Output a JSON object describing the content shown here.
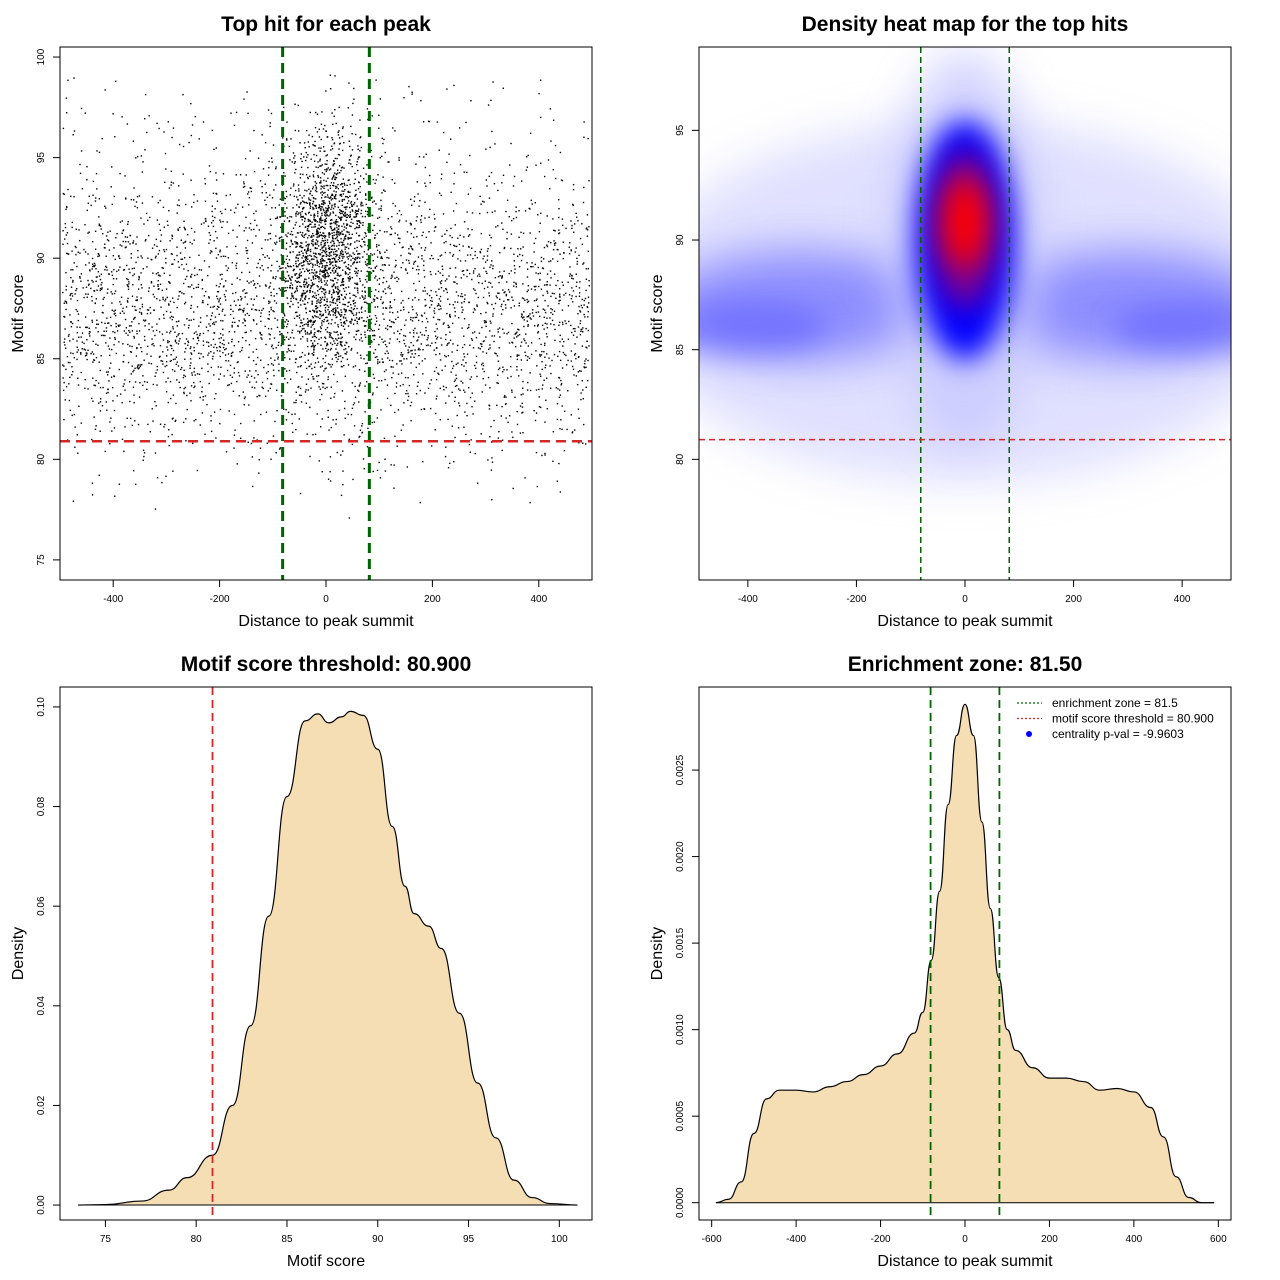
{
  "chart_data": [
    {
      "id": "scatter",
      "type": "scatter",
      "title": "Top hit for each peak",
      "xlabel": "Distance to peak summit",
      "ylabel": "Motif score",
      "xlim": [
        -500,
        500
      ],
      "ylim": [
        74,
        100.5
      ],
      "xticks": [
        "-400",
        "-200",
        "0",
        "200",
        "400"
      ],
      "xtick_values": [
        -400,
        -200,
        0,
        200,
        400
      ],
      "yticks": [
        "75",
        "80",
        "85",
        "90",
        "95",
        "100"
      ],
      "ytick_values": [
        75,
        80,
        85,
        90,
        95,
        100
      ],
      "vlines": [
        -81.5,
        81.5
      ],
      "hline": 80.9,
      "point_density": {
        "x_range": [
          -495,
          495
        ],
        "y_range": [
          77,
          99.2
        ],
        "background_center": 87.3,
        "central_peak_x": 0,
        "central_peak_y": 90.5
      },
      "colors": {
        "points": "#000000",
        "vlines": "#006400",
        "hline": "#d62728"
      },
      "grid": false
    },
    {
      "id": "heatmap",
      "type": "heatmap",
      "title": "Density heat map for the top hits",
      "xlabel": "Distance to peak summit",
      "ylabel": "Motif score",
      "xlim": [
        -490,
        490
      ],
      "ylim": [
        74.5,
        98.8
      ],
      "xticks": [
        "-400",
        "-200",
        "0",
        "200",
        "400"
      ],
      "xtick_values": [
        -400,
        -200,
        0,
        200,
        400
      ],
      "yticks": [
        "80",
        "85",
        "90",
        "95"
      ],
      "ytick_values": [
        80,
        85,
        90,
        95
      ],
      "vlines": [
        -81.5,
        81.5
      ],
      "hline": 80.9,
      "density_peak": {
        "x": 0,
        "y": 90.8
      },
      "colors": {
        "low": "#ffffff",
        "mid": "#0000ff",
        "high": "#ff0000",
        "vlines": "#006400",
        "hline": "#d62728"
      },
      "grid": false
    },
    {
      "id": "score-density",
      "type": "area",
      "title": "Motif score threshold: 80.900",
      "xlabel": "Motif score",
      "ylabel": "Density",
      "xlim": [
        72.5,
        101.8
      ],
      "ylim": [
        -0.003,
        0.104
      ],
      "xticks": [
        "75",
        "80",
        "85",
        "90",
        "95",
        "100"
      ],
      "xtick_values": [
        75,
        80,
        85,
        90,
        95,
        100
      ],
      "yticks": [
        "0.00",
        "0.02",
        "0.04",
        "0.06",
        "0.08",
        "0.10"
      ],
      "ytick_values": [
        0,
        0.02,
        0.04,
        0.06,
        0.08,
        0.1
      ],
      "x": [
        73.5,
        75,
        77,
        78.5,
        79.5,
        80.9,
        82,
        83,
        84,
        85,
        86,
        86.7,
        87.3,
        88,
        88.5,
        89.2,
        90,
        90.8,
        91.5,
        92,
        92.8,
        93.5,
        94.5,
        95.5,
        96.5,
        97.5,
        98.5,
        99.5,
        101
      ],
      "values": [
        0.0,
        0.0001,
        0.0008,
        0.003,
        0.0055,
        0.01,
        0.02,
        0.036,
        0.058,
        0.082,
        0.0972,
        0.0986,
        0.0968,
        0.098,
        0.0991,
        0.0983,
        0.0915,
        0.076,
        0.064,
        0.0585,
        0.056,
        0.0515,
        0.0385,
        0.0245,
        0.0135,
        0.005,
        0.0015,
        0.0003,
        0.0
      ],
      "vline": 80.9,
      "colors": {
        "fill": "#f5deb3",
        "line": "#000000",
        "vline": "#d62728"
      },
      "grid": false
    },
    {
      "id": "distance-density",
      "type": "area",
      "title": "Enrichment zone: 81.50",
      "xlabel": "Distance to peak summit",
      "ylabel": "Density",
      "xlim": [
        -630,
        630
      ],
      "ylim": [
        -0.0001,
        0.00298
      ],
      "xticks": [
        "-600",
        "-400",
        "-200",
        "0",
        "200",
        "400",
        "600"
      ],
      "xtick_values": [
        -600,
        -400,
        -200,
        0,
        200,
        400,
        600
      ],
      "yticks": [
        "0.0000",
        "0.0005",
        "0.0010",
        "0.0015",
        "0.0020",
        "0.0025"
      ],
      "ytick_values": [
        0,
        0.0005,
        0.001,
        0.0015,
        0.002,
        0.0025
      ],
      "x": [
        -590,
        -560,
        -530,
        -500,
        -470,
        -440,
        -400,
        -360,
        -320,
        -280,
        -240,
        -200,
        -160,
        -120,
        -100,
        -80,
        -60,
        -40,
        -20,
        0,
        20,
        40,
        60,
        80,
        100,
        120,
        160,
        200,
        240,
        280,
        320,
        360,
        400,
        440,
        470,
        500,
        530,
        560,
        590
      ],
      "values": [
        0.0,
        2e-05,
        0.00012,
        0.0004,
        0.0006,
        0.00065,
        0.00065,
        0.00064,
        0.00067,
        0.0007,
        0.00074,
        0.00079,
        0.00086,
        0.00098,
        0.0011,
        0.0014,
        0.0018,
        0.0023,
        0.0027,
        0.00288,
        0.0027,
        0.0022,
        0.0017,
        0.0013,
        0.001,
        0.00088,
        0.00078,
        0.00072,
        0.00072,
        0.0007,
        0.00065,
        0.00066,
        0.00064,
        0.00055,
        0.00038,
        0.00015,
        3e-05,
        0.0,
        0.0
      ],
      "vlines": [
        -81.5,
        81.5
      ],
      "legend": [
        {
          "label": "enrichment zone = 81.5",
          "marker": "dotted-line",
          "color": "#006400"
        },
        {
          "label": "motif score threshold = 80.900",
          "marker": "dotted-line",
          "color": "#d62728"
        },
        {
          "label": "centrality p-val = -9.9603",
          "marker": "dot",
          "color": "#0000ff"
        }
      ],
      "legend_position": "top-right",
      "colors": {
        "fill": "#f5deb3",
        "line": "#000000",
        "vlines": "#006400"
      },
      "grid": false
    }
  ]
}
